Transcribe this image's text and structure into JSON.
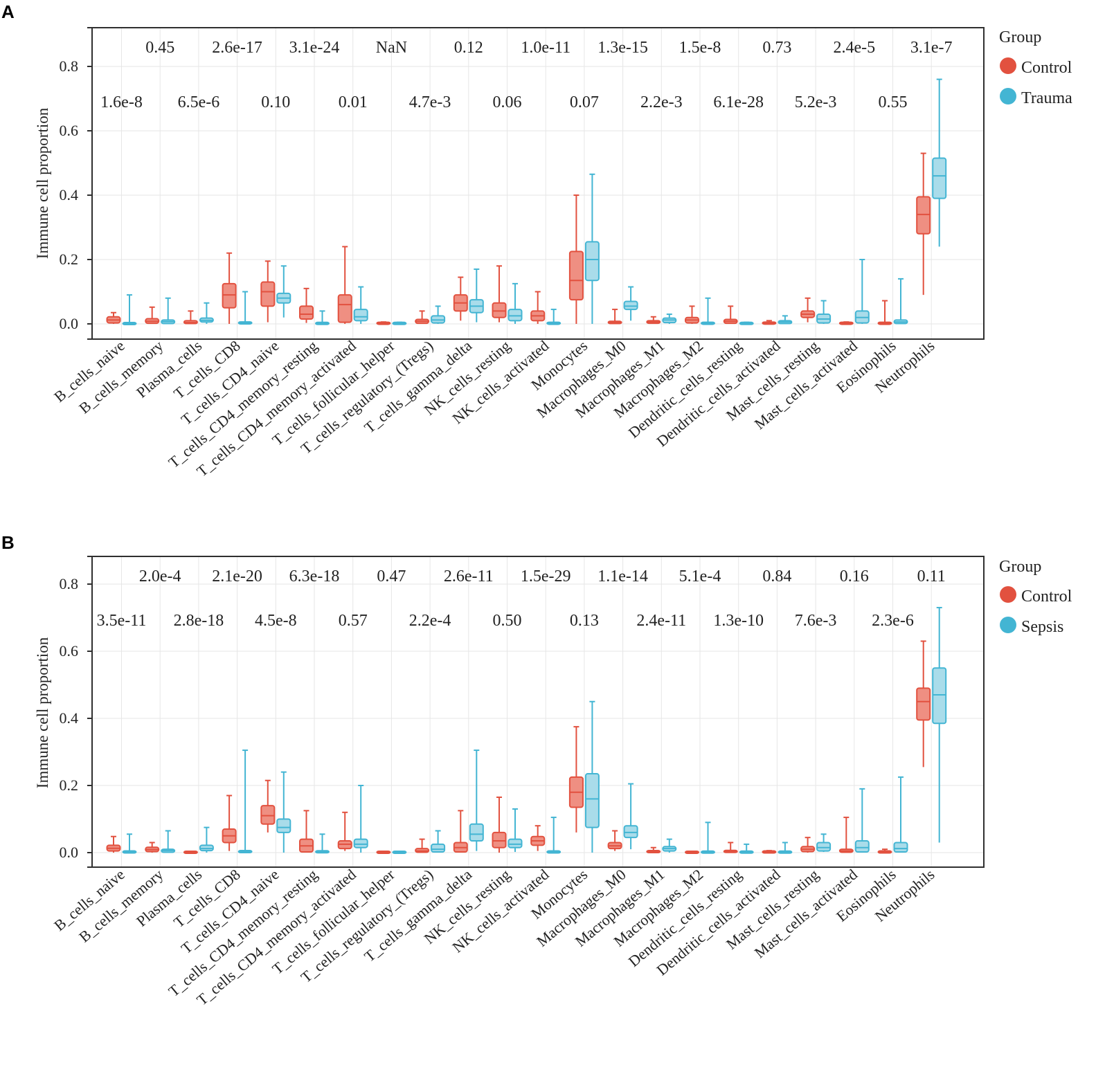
{
  "panels_meta": [
    {
      "letter": "A",
      "legend_title": "Group",
      "legend_groups": [
        "Control",
        "Trauma"
      ],
      "ylabel": "Immune cell proportion"
    },
    {
      "letter": "B",
      "legend_title": "Group",
      "legend_groups": [
        "Control",
        "Sepsis"
      ],
      "ylabel": "Immune cell proportion"
    }
  ],
  "colors": {
    "control_stroke": "#e2513f",
    "control_fill": "#ef8f82",
    "case_stroke": "#43b5d3",
    "case_fill": "#a9dcea",
    "grid": "#e6e6e6"
  },
  "chart_data": [
    {
      "type": "box",
      "title": "A",
      "xlabel": "",
      "ylabel": "Immune cell proportion",
      "ylim": [
        -0.05,
        0.92
      ],
      "yticks": [
        0.0,
        0.2,
        0.4,
        0.6,
        0.8
      ],
      "ytick_labels": [
        "0.0",
        "0.2",
        "0.4",
        "0.6",
        "0.8"
      ],
      "grid": true,
      "legend": "right",
      "groups": [
        "Control",
        "Trauma"
      ],
      "categories": [
        "B_cells_naive",
        "B_cells_memory",
        "Plasma_cells",
        "T_cells_CD8",
        "T_cells_CD4_naive",
        "T_cells_CD4_memory_resting",
        "T_cells_CD4_memory_activated",
        "T_cells_follicular_helper",
        "T_cells_regulatory_(Tregs)",
        "T_cells_gamma_delta",
        "NK_cells_resting",
        "NK_cells_activated",
        "Monocytes",
        "Macrophages_M0",
        "Macrophages_M1",
        "Macrophages_M2",
        "Dendritic_cells_resting",
        "Dendritic_cells_activated",
        "Mast_cells_resting",
        "Mast_cells_activated",
        "Eosinophils",
        "Neutrophils"
      ],
      "pvalues": [
        "1.6e-8",
        "0.45",
        "6.5e-6",
        "2.6e-17",
        "0.10",
        "3.1e-24",
        "0.01",
        "NaN",
        "4.7e-3",
        "0.12",
        "0.06",
        "1.0e-11",
        "0.07",
        "1.3e-15",
        "2.2e-3",
        "1.5e-8",
        "6.1e-28",
        "0.73",
        "5.2e-3",
        "2.4e-5",
        "0.55",
        "3.1e-7"
      ],
      "series": [
        {
          "name": "Control",
          "boxes": [
            [
              0,
              0.003,
              0.012,
              0.022,
              0.035
            ],
            [
              0,
              0.002,
              0.008,
              0.016,
              0.052
            ],
            [
              0,
              0.001,
              0.004,
              0.01,
              0.04
            ],
            [
              0,
              0.05,
              0.09,
              0.125,
              0.22
            ],
            [
              0.005,
              0.055,
              0.1,
              0.13,
              0.195
            ],
            [
              0.003,
              0.015,
              0.03,
              0.055,
              0.11
            ],
            [
              0,
              0.005,
              0.06,
              0.09,
              0.24
            ],
            [
              0,
              0,
              0.002,
              0.004,
              0.006
            ],
            [
              0,
              0.002,
              0.008,
              0.014,
              0.04
            ],
            [
              0.01,
              0.04,
              0.065,
              0.09,
              0.145
            ],
            [
              0.005,
              0.02,
              0.04,
              0.065,
              0.18
            ],
            [
              0,
              0.01,
              0.025,
              0.04,
              0.1
            ],
            [
              0,
              0.075,
              0.135,
              0.225,
              0.4
            ],
            [
              0,
              0.001,
              0.004,
              0.008,
              0.045
            ],
            [
              0,
              0.002,
              0.006,
              0.01,
              0.022
            ],
            [
              0,
              0.003,
              0.012,
              0.02,
              0.055
            ],
            [
              0,
              0.002,
              0.008,
              0.014,
              0.055
            ],
            [
              0,
              0,
              0.002,
              0.005,
              0.01
            ],
            [
              0.005,
              0.02,
              0.03,
              0.04,
              0.08
            ],
            [
              0,
              0,
              0.002,
              0.004,
              0.006
            ],
            [
              0,
              0,
              0.002,
              0.004,
              0.072
            ],
            [
              0.09,
              0.28,
              0.34,
              0.395,
              0.53
            ]
          ]
        },
        {
          "name": "Trauma",
          "boxes": [
            [
              0,
              0,
              0.001,
              0.002,
              0.09
            ],
            [
              0,
              0.001,
              0.007,
              0.012,
              0.08
            ],
            [
              0,
              0.006,
              0.011,
              0.018,
              0.065
            ],
            [
              0,
              0,
              0.003,
              0.006,
              0.1
            ],
            [
              0.02,
              0.065,
              0.08,
              0.095,
              0.18
            ],
            [
              0,
              0,
              0.001,
              0.003,
              0.04
            ],
            [
              0,
              0.01,
              0.022,
              0.045,
              0.115
            ],
            [
              0,
              0,
              0.001,
              0.003,
              0.005
            ],
            [
              0,
              0.003,
              0.012,
              0.025,
              0.055
            ],
            [
              0.005,
              0.035,
              0.055,
              0.075,
              0.17
            ],
            [
              0,
              0.01,
              0.025,
              0.045,
              0.125
            ],
            [
              0,
              0,
              0.002,
              0.004,
              0.045
            ],
            [
              0,
              0.135,
              0.2,
              0.255,
              0.465
            ],
            [
              0.01,
              0.045,
              0.055,
              0.07,
              0.115
            ],
            [
              0,
              0.004,
              0.012,
              0.018,
              0.03
            ],
            [
              0,
              0,
              0.002,
              0.004,
              0.08
            ],
            [
              0,
              0,
              0.001,
              0.003,
              0.005
            ],
            [
              0,
              0.001,
              0.006,
              0.01,
              0.025
            ],
            [
              0,
              0.003,
              0.015,
              0.03,
              0.072
            ],
            [
              0,
              0.003,
              0.02,
              0.04,
              0.2
            ],
            [
              0,
              0.001,
              0.006,
              0.012,
              0.14
            ],
            [
              0.24,
              0.39,
              0.46,
              0.515,
              0.76
            ]
          ]
        }
      ]
    },
    {
      "type": "box",
      "title": "B",
      "xlabel": "",
      "ylabel": "Immune cell proportion",
      "ylim": [
        -0.05,
        0.88
      ],
      "yticks": [
        0.0,
        0.2,
        0.4,
        0.6,
        0.8
      ],
      "ytick_labels": [
        "0.0",
        "0.2",
        "0.4",
        "0.6",
        "0.8"
      ],
      "grid": true,
      "legend": "right",
      "groups": [
        "Control",
        "Sepsis"
      ],
      "categories": [
        "B_cells_naive",
        "B_cells_memory",
        "Plasma_cells",
        "T_cells_CD8",
        "T_cells_CD4_naive",
        "T_cells_CD4_memory_resting",
        "T_cells_CD4_memory_activated",
        "T_cells_follicular_helper",
        "T_cells_regulatory_(Tregs)",
        "T_cells_gamma_delta",
        "NK_cells_resting",
        "NK_cells_activated",
        "Monocytes",
        "Macrophages_M0",
        "Macrophages_M1",
        "Macrophages_M2",
        "Dendritic_cells_resting",
        "Dendritic_cells_activated",
        "Mast_cells_resting",
        "Mast_cells_activated",
        "Eosinophils",
        "Neutrophils"
      ],
      "pvalues": [
        "3.5e-11",
        "2.0e-4",
        "2.8e-18",
        "2.1e-20",
        "4.5e-8",
        "6.3e-18",
        "0.57",
        "0.47",
        "2.2e-4",
        "2.6e-11",
        "0.50",
        "1.5e-29",
        "0.13",
        "1.1e-14",
        "2.4e-11",
        "5.1e-4",
        "1.3e-10",
        "0.84",
        "7.6e-3",
        "0.16",
        "2.3e-6",
        "0.11"
      ],
      "series": [
        {
          "name": "Control",
          "boxes": [
            [
              0,
              0.005,
              0.013,
              0.022,
              0.048
            ],
            [
              0,
              0.003,
              0.009,
              0.016,
              0.03
            ],
            [
              0,
              0,
              0.001,
              0.002,
              0.004
            ],
            [
              0.005,
              0.03,
              0.05,
              0.07,
              0.17
            ],
            [
              0.06,
              0.085,
              0.11,
              0.14,
              0.215
            ],
            [
              0,
              0.002,
              0.02,
              0.04,
              0.125
            ],
            [
              0.005,
              0.012,
              0.025,
              0.035,
              0.12
            ],
            [
              0,
              0,
              0.001,
              0.002,
              0.004
            ],
            [
              0,
              0.001,
              0.005,
              0.012,
              0.04
            ],
            [
              0,
              0.002,
              0.015,
              0.03,
              0.125
            ],
            [
              0,
              0.015,
              0.035,
              0.06,
              0.165
            ],
            [
              0.005,
              0.022,
              0.035,
              0.048,
              0.08
            ],
            [
              0.06,
              0.135,
              0.18,
              0.225,
              0.375
            ],
            [
              0.005,
              0.012,
              0.02,
              0.03,
              0.065
            ],
            [
              0,
              0.001,
              0.003,
              0.005,
              0.015
            ],
            [
              0,
              0,
              0.001,
              0.002,
              0.004
            ],
            [
              0,
              0.001,
              0.003,
              0.006,
              0.03
            ],
            [
              0,
              0,
              0.002,
              0.004,
              0.006
            ],
            [
              0,
              0.003,
              0.01,
              0.018,
              0.045
            ],
            [
              0,
              0.001,
              0.005,
              0.01,
              0.105
            ],
            [
              0,
              0,
              0.002,
              0.004,
              0.01
            ],
            [
              0.255,
              0.395,
              0.45,
              0.49,
              0.63
            ]
          ]
        },
        {
          "name": "Sepsis",
          "boxes": [
            [
              0,
              0,
              0.002,
              0.004,
              0.055
            ],
            [
              0,
              0.001,
              0.006,
              0.01,
              0.065
            ],
            [
              0,
              0.006,
              0.012,
              0.022,
              0.075
            ],
            [
              0,
              0,
              0.003,
              0.006,
              0.305
            ],
            [
              0,
              0.06,
              0.075,
              0.1,
              0.24
            ],
            [
              0,
              0,
              0.002,
              0.005,
              0.055
            ],
            [
              0,
              0.015,
              0.025,
              0.04,
              0.2
            ],
            [
              0,
              0,
              0.001,
              0.002,
              0.004
            ],
            [
              0,
              0.002,
              0.01,
              0.025,
              0.065
            ],
            [
              0.005,
              0.035,
              0.055,
              0.085,
              0.305
            ],
            [
              0.002,
              0.015,
              0.025,
              0.04,
              0.13
            ],
            [
              0,
              0,
              0.002,
              0.004,
              0.105
            ],
            [
              0,
              0.075,
              0.16,
              0.235,
              0.45
            ],
            [
              0.01,
              0.045,
              0.06,
              0.08,
              0.205
            ],
            [
              0,
              0.005,
              0.012,
              0.018,
              0.04
            ],
            [
              0,
              0,
              0.001,
              0.003,
              0.09
            ],
            [
              0,
              0,
              0.001,
              0.003,
              0.025
            ],
            [
              0,
              0,
              0.001,
              0.003,
              0.03
            ],
            [
              0.002,
              0.005,
              0.015,
              0.03,
              0.055
            ],
            [
              0,
              0.002,
              0.015,
              0.035,
              0.19
            ],
            [
              0,
              0.002,
              0.012,
              0.03,
              0.225
            ],
            [
              0.03,
              0.385,
              0.47,
              0.55,
              0.73
            ]
          ]
        }
      ]
    }
  ]
}
